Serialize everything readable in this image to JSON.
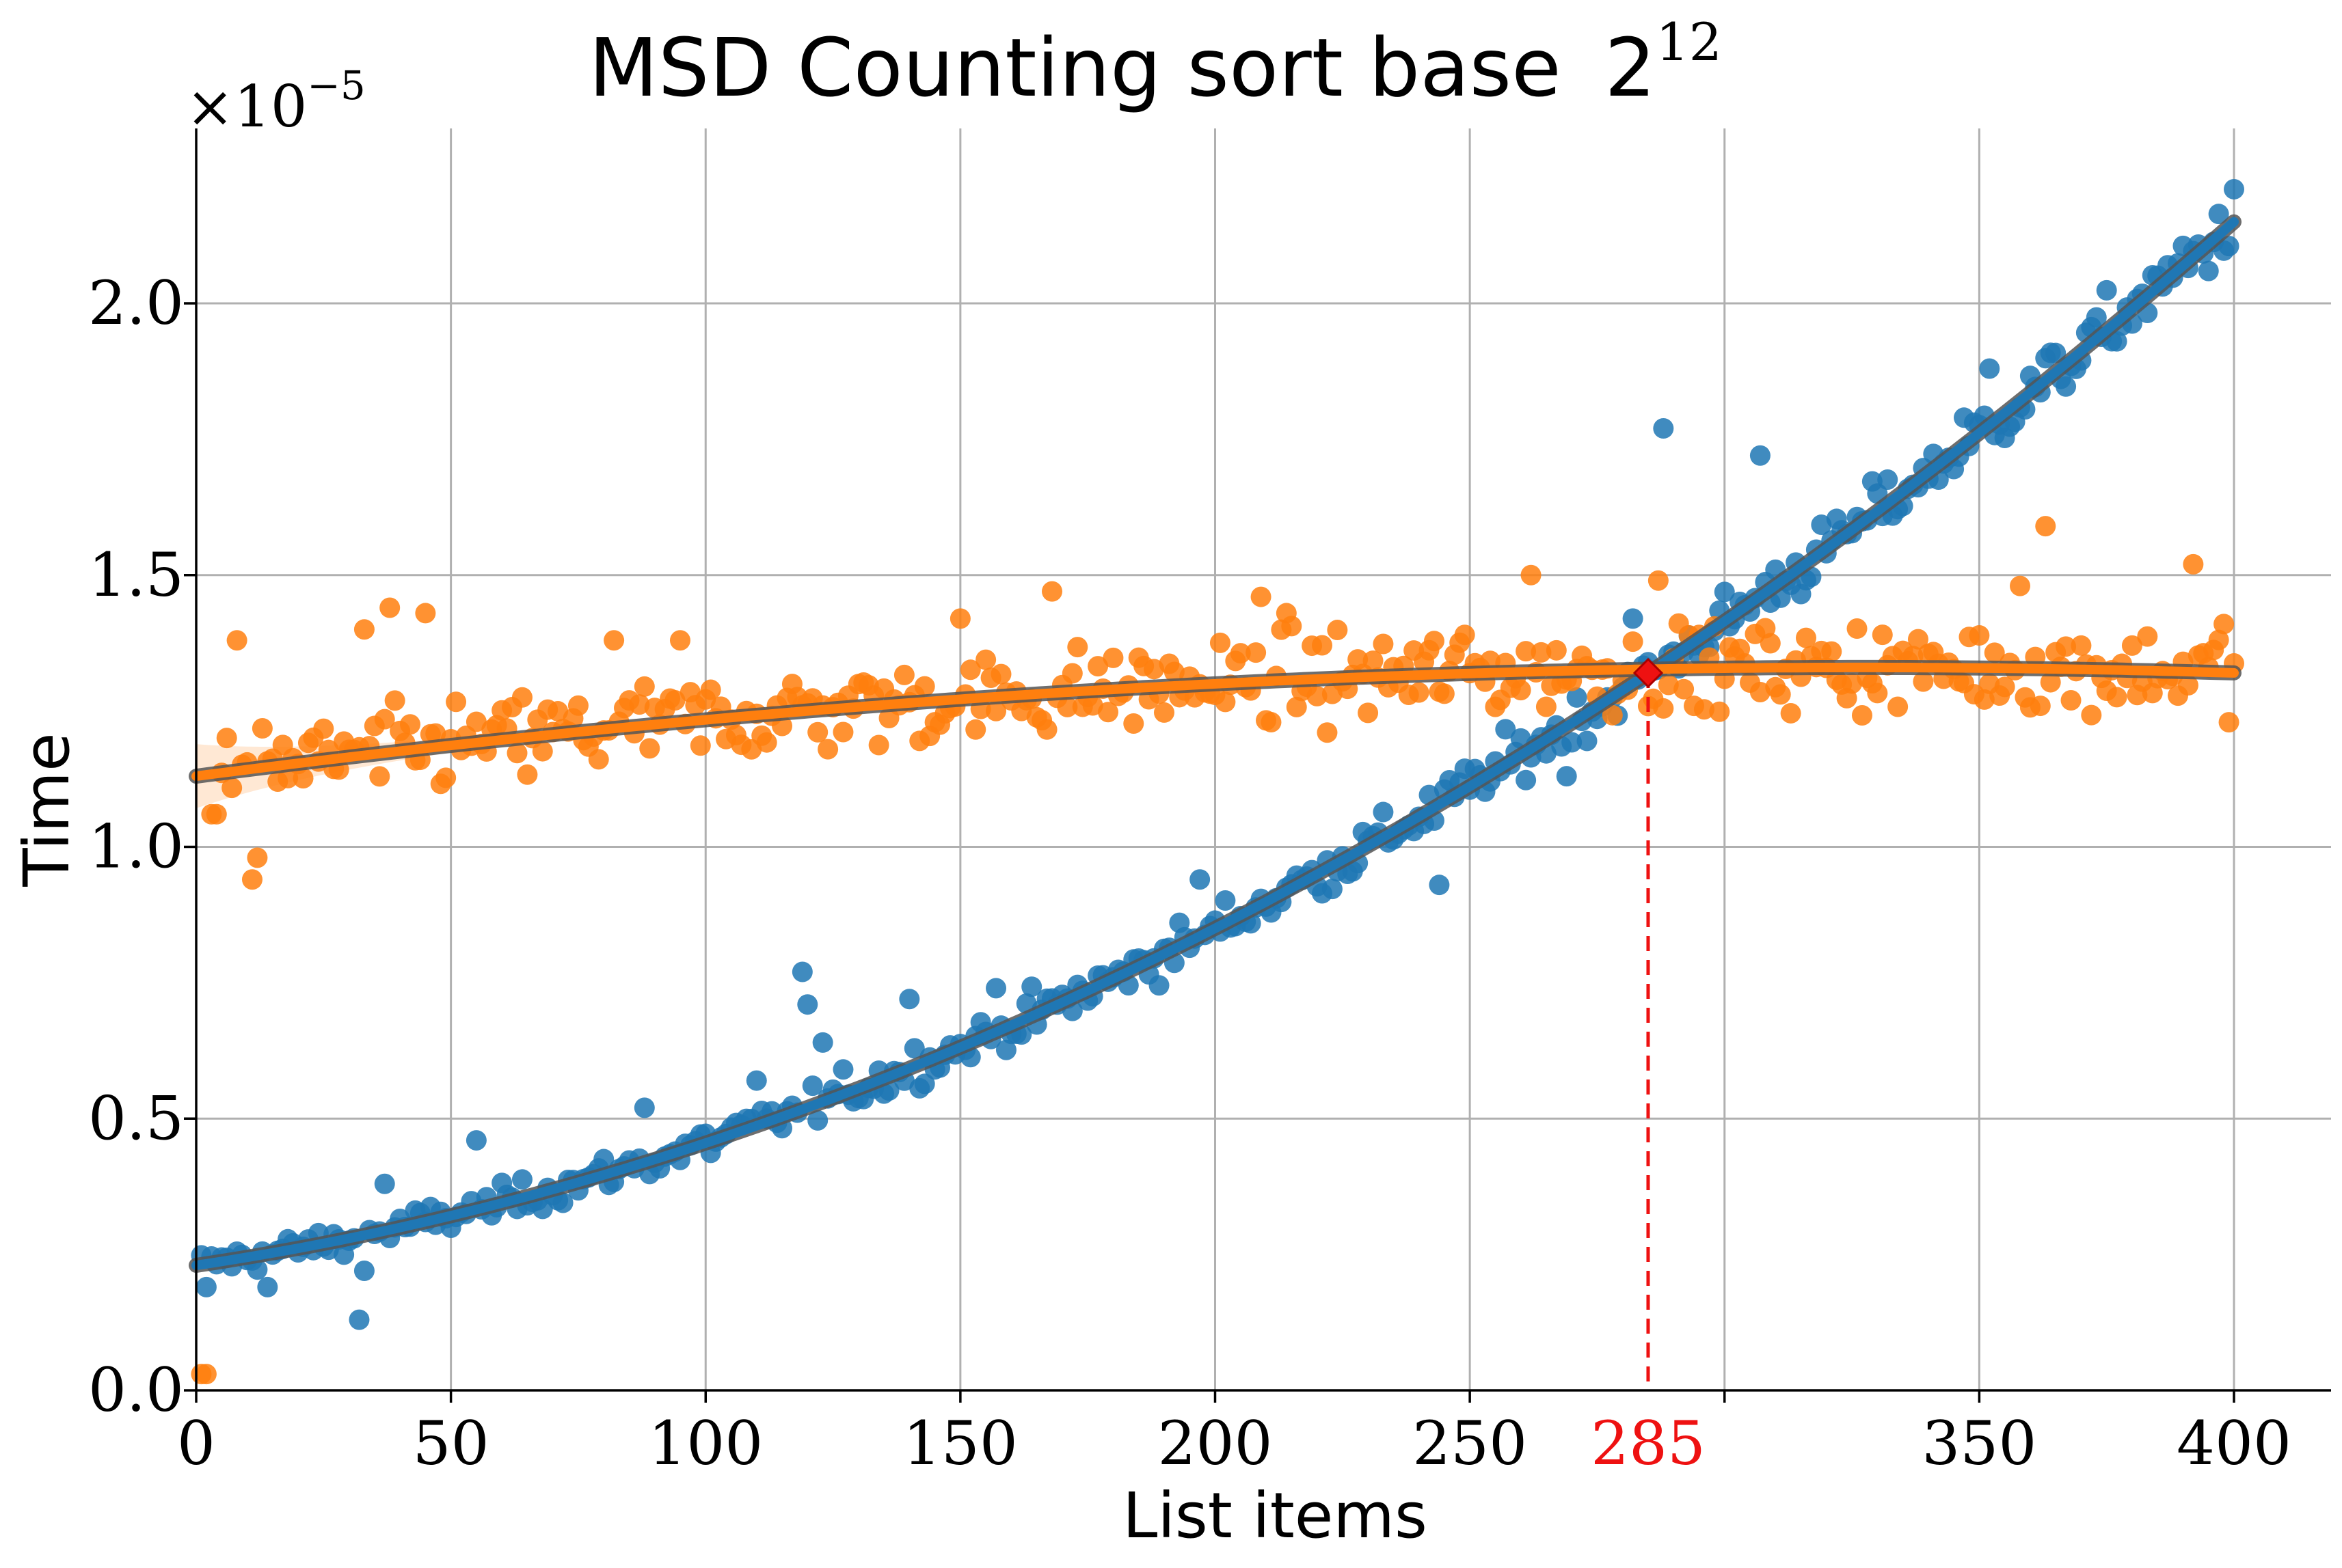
{
  "chart_data": {
    "type": "scatter",
    "title": "MSD Counting sort base",
    "title_base_exponent": "12",
    "xlabel": "List items",
    "ylabel": "Time",
    "y_offset_text": "×10",
    "y_offset_exponent": "−5",
    "xlim": [
      0,
      420
    ],
    "ylim": [
      0,
      2.3
    ],
    "x_ticks": [
      0,
      50,
      100,
      150,
      200,
      250,
      300,
      350,
      400
    ],
    "x_tick_labels": [
      "0",
      "50",
      "100",
      "150",
      "200",
      "250",
      "",
      "350",
      "400"
    ],
    "y_ticks": [
      0,
      0.5,
      1.0,
      1.5,
      2.0
    ],
    "y_tick_labels": [
      "0.0",
      "0.5",
      "1.0",
      "1.5",
      "2.0"
    ],
    "grid": true,
    "legend": "none",
    "intersection": {
      "x": 285,
      "y": 1.32,
      "label": "285",
      "color": "#ee1111"
    },
    "series": [
      {
        "color": "#1f77b4",
        "fit": {
          "type": "quadratic",
          "y_at_0": 0.23,
          "y_at_200": 0.85,
          "y_at_400": 2.15
        },
        "noise": 0.03,
        "outliers": [
          [
            2,
            0.19
          ],
          [
            14,
            0.19
          ],
          [
            32,
            0.13
          ],
          [
            33,
            0.22
          ],
          [
            37,
            0.38
          ],
          [
            55,
            0.46
          ],
          [
            88,
            0.52
          ],
          [
            110,
            0.57
          ],
          [
            119,
            0.77
          ],
          [
            120,
            0.71
          ],
          [
            123,
            0.64
          ],
          [
            140,
            0.72
          ],
          [
            157,
            0.74
          ],
          [
            197,
            0.94
          ],
          [
            244,
            0.93
          ],
          [
            269,
            1.13
          ],
          [
            282,
            1.42
          ],
          [
            288,
            1.77
          ],
          [
            307,
            1.72
          ],
          [
            330,
            1.65
          ],
          [
            352,
            1.88
          ],
          [
            400,
            2.21
          ]
        ]
      },
      {
        "color": "#ff7f0e",
        "fit": {
          "type": "quadratic",
          "y_at_0": 1.13,
          "y_at_200": 1.3,
          "y_at_400": 1.32
        },
        "noise": 0.05,
        "outliers": [
          [
            1,
            0.03
          ],
          [
            2,
            0.03
          ],
          [
            3,
            1.06
          ],
          [
            4,
            1.06
          ],
          [
            8,
            1.38
          ],
          [
            11,
            0.94
          ],
          [
            12,
            0.98
          ],
          [
            33,
            1.4
          ],
          [
            38,
            1.44
          ],
          [
            45,
            1.43
          ],
          [
            82,
            1.38
          ],
          [
            95,
            1.38
          ],
          [
            150,
            1.42
          ],
          [
            168,
            1.47
          ],
          [
            209,
            1.46
          ],
          [
            214,
            1.43
          ],
          [
            249,
            1.39
          ],
          [
            262,
            1.5
          ],
          [
            287,
            1.49
          ],
          [
            358,
            1.48
          ],
          [
            363,
            1.59
          ],
          [
            392,
            1.52
          ],
          [
            398,
            1.41
          ]
        ]
      }
    ]
  }
}
